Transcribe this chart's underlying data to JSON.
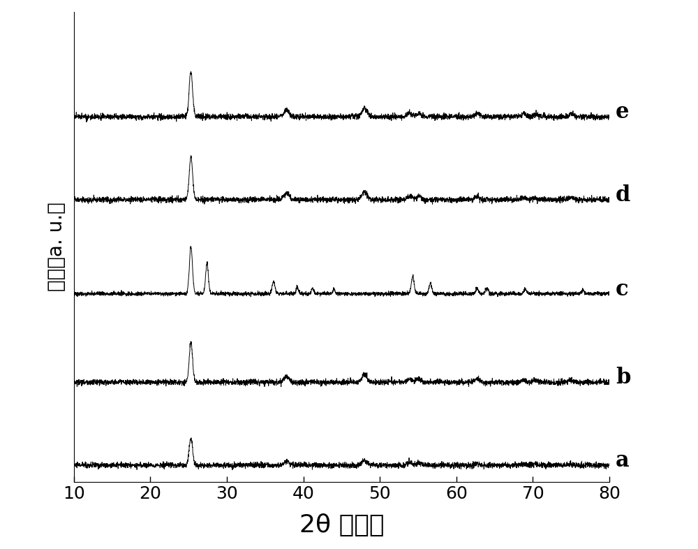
{
  "xlabel": "2θ （度）",
  "ylabel": "强度（a. u.）",
  "xlim": [
    10,
    80
  ],
  "ylim": [
    -0.3,
    8.2
  ],
  "xticks": [
    10,
    20,
    30,
    40,
    50,
    60,
    70,
    80
  ],
  "labels": [
    "a",
    "b",
    "c",
    "d",
    "e"
  ],
  "offsets": [
    0.0,
    1.5,
    3.1,
    4.8,
    6.3
  ],
  "line_color": "#000000",
  "bg_color": "#ffffff",
  "figsize": [
    10.0,
    7.86
  ],
  "dpi": 100,
  "noise_amplitude": 0.025,
  "label_fontsize": 20,
  "tick_fontsize": 18,
  "trace_label_fontsize": 22
}
